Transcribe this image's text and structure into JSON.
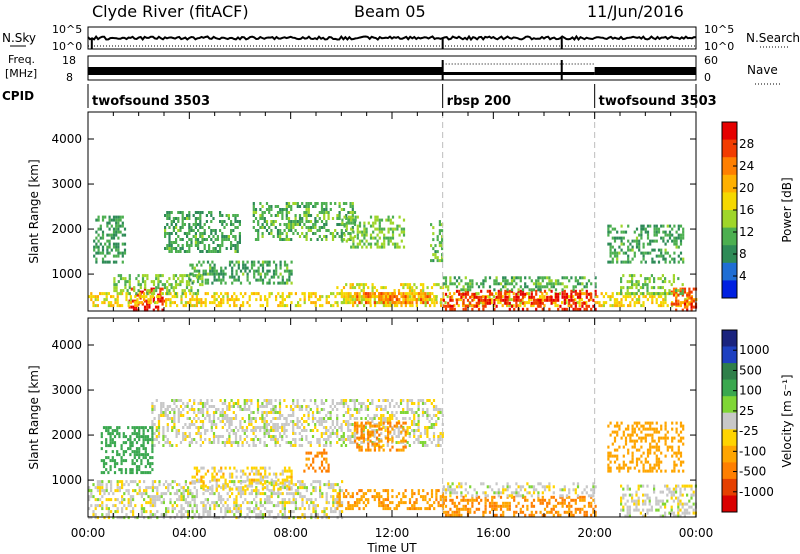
{
  "header": {
    "station": "Clyde River (fitACF)",
    "beam": "Beam 05",
    "date": "11/Jun/2016"
  },
  "top_panels": {
    "nsky_label": "N.Sky",
    "nsky_ticks": [
      "10^5",
      "10^0"
    ],
    "nsearch_label": "N.Search",
    "freq_label_line1": "Freq.",
    "freq_label_line2": "[MHz]",
    "freq_ticks": [
      "18",
      "8"
    ],
    "nave_label": "Nave",
    "nave_ticks": [
      "60",
      "0"
    ],
    "cpid_label": "CPID",
    "cpid_segments": [
      {
        "name": "twofsound 3503",
        "start_h": 0,
        "end_h": 14
      },
      {
        "name": "rbsp 200",
        "start_h": 14,
        "end_h": 20
      },
      {
        "name": "twofsound 3503",
        "start_h": 20,
        "end_h": 24
      }
    ]
  },
  "colorbars": {
    "power": {
      "label": "Power [dB]",
      "ticks": [
        "28",
        "24",
        "20",
        "16",
        "12",
        "8",
        "4"
      ],
      "colors": [
        "#e50000",
        "#f23c00",
        "#ff7f00",
        "#ffb000",
        "#f5d800",
        "#9fd62a",
        "#4caf50",
        "#2e8b57",
        "#1f6ed4",
        "#0020e0"
      ]
    },
    "velocity": {
      "label": "Velocity [m s⁻¹]",
      "ticks": [
        "1000",
        "500",
        "100",
        "25",
        "-25",
        "-100",
        "-500",
        "-1000"
      ],
      "colors": [
        "#1a237e",
        "#1e40c0",
        "#2f7f4a",
        "#3aa84f",
        "#7fd635",
        "#c8c8c8",
        "#ffd400",
        "#ffa500",
        "#ff7f00",
        "#e54000",
        "#d90000"
      ]
    }
  },
  "chart_data": [
    {
      "type": "heatmap",
      "title": "Power",
      "xlabel": "Time UT",
      "ylabel": "Slant Range [km]",
      "x_ticks": [
        "00:00",
        "04:00",
        "08:00",
        "12:00",
        "16:00",
        "20:00",
        "00:00"
      ],
      "y_ticks": [
        "1000",
        "2000",
        "3000",
        "4000"
      ],
      "xlim": [
        0,
        24
      ],
      "ylim": [
        180,
        4600
      ],
      "colorbar_range": [
        0,
        30
      ],
      "regions": [
        {
          "t": [
            1.6,
            3.0
          ],
          "r": [
            200,
            700
          ],
          "v": 29
        },
        {
          "t": [
            0.0,
            24.0
          ],
          "r": [
            300,
            600
          ],
          "v": 17
        },
        {
          "t": [
            1.0,
            4.5
          ],
          "r": [
            600,
            1000
          ],
          "v": 12
        },
        {
          "t": [
            9.8,
            14.0
          ],
          "r": [
            350,
            800
          ],
          "v": 16
        },
        {
          "t": [
            10.5,
            13.5
          ],
          "r": [
            400,
            600
          ],
          "v": 24
        },
        {
          "t": [
            14.0,
            20.0
          ],
          "r": [
            200,
            650
          ],
          "v": 28
        },
        {
          "t": [
            14.0,
            20.0
          ],
          "r": [
            650,
            950
          ],
          "v": 10
        },
        {
          "t": [
            23.0,
            24.0
          ],
          "r": [
            200,
            700
          ],
          "v": 26
        },
        {
          "t": [
            21.0,
            23.5
          ],
          "r": [
            600,
            1000
          ],
          "v": 12
        },
        {
          "t": [
            6.5,
            10.5
          ],
          "r": [
            1800,
            2600
          ],
          "v": 10
        },
        {
          "t": [
            3.0,
            6.0
          ],
          "r": [
            1500,
            2400
          ],
          "v": 9
        },
        {
          "t": [
            0.2,
            1.5
          ],
          "r": [
            1300,
            2300
          ],
          "v": 8
        },
        {
          "t": [
            10.0,
            12.5
          ],
          "r": [
            1600,
            2300
          ],
          "v": 12
        },
        {
          "t": [
            13.5,
            14.0
          ],
          "r": [
            1300,
            2200
          ],
          "v": 11
        },
        {
          "t": [
            4.0,
            8.0
          ],
          "r": [
            800,
            1300
          ],
          "v": 9
        },
        {
          "t": [
            20.5,
            23.5
          ],
          "r": [
            1300,
            2100
          ],
          "v": 9
        }
      ]
    },
    {
      "type": "heatmap",
      "title": "Velocity",
      "xlabel": "Time UT",
      "ylabel": "Slant Range [km]",
      "x_ticks": [
        "00:00",
        "04:00",
        "08:00",
        "12:00",
        "16:00",
        "20:00",
        "00:00"
      ],
      "y_ticks": [
        "1000",
        "2000",
        "3000",
        "4000"
      ],
      "xlim": [
        0,
        24
      ],
      "ylim": [
        180,
        4600
      ],
      "colorbar_range": [
        -1000,
        1000
      ],
      "regions": [
        {
          "t": [
            0.0,
            10.0
          ],
          "r": [
            200,
            1000
          ],
          "v": 0
        },
        {
          "t": [
            2.5,
            14.0
          ],
          "r": [
            1800,
            2800
          ],
          "v": 0
        },
        {
          "t": [
            4.0,
            8.0
          ],
          "r": [
            800,
            1300
          ],
          "v": -40
        },
        {
          "t": [
            9.8,
            14.0
          ],
          "r": [
            350,
            800
          ],
          "v": -150
        },
        {
          "t": [
            14.0,
            20.0
          ],
          "r": [
            200,
            650
          ],
          "v": -180
        },
        {
          "t": [
            14.0,
            20.0
          ],
          "r": [
            650,
            950
          ],
          "v": 0
        },
        {
          "t": [
            0.5,
            2.5
          ],
          "r": [
            1200,
            2200
          ],
          "v": 120
        },
        {
          "t": [
            10.5,
            12.5
          ],
          "r": [
            1700,
            2300
          ],
          "v": -180
        },
        {
          "t": [
            20.5,
            23.5
          ],
          "r": [
            1200,
            2300
          ],
          "v": -120
        },
        {
          "t": [
            21.0,
            24.0
          ],
          "r": [
            200,
            900
          ],
          "v": 0
        },
        {
          "t": [
            8.5,
            9.5
          ],
          "r": [
            1200,
            1700
          ],
          "v": -200
        }
      ]
    }
  ]
}
